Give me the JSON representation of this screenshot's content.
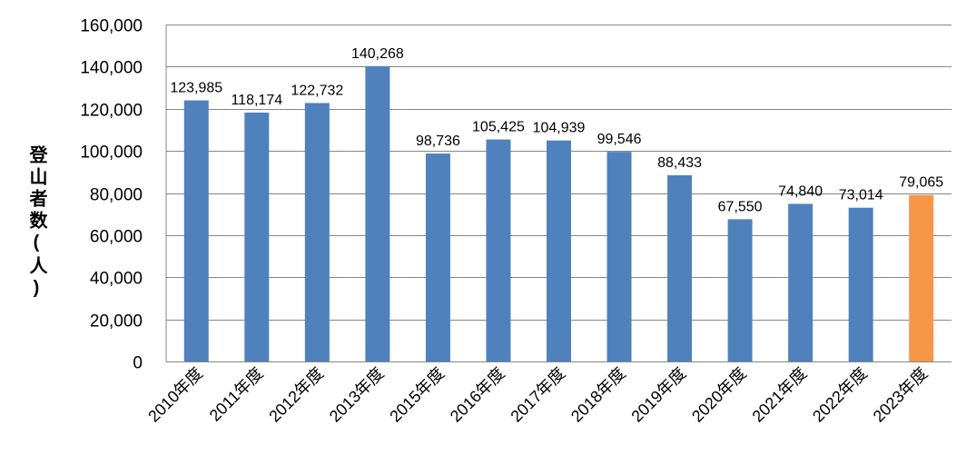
{
  "chart_data": {
    "type": "bar",
    "categories": [
      "2010年度",
      "2011年度",
      "2012年度",
      "2013年度",
      "2015年度",
      "2016年度",
      "2017年度",
      "2018年度",
      "2019年度",
      "2020年度",
      "2021年度",
      "2022年度",
      "2023年度"
    ],
    "values": [
      123985,
      118174,
      122732,
      140268,
      98736,
      105425,
      104939,
      99546,
      88433,
      67550,
      74840,
      73014,
      79065
    ],
    "value_labels": [
      "123,985",
      "118,174",
      "122,732",
      "140,268",
      "98,736",
      "105,425",
      "104,939",
      "99,546",
      "88,433",
      "67,550",
      "74,840",
      "73,014",
      "79,065"
    ],
    "ylabel": "登山者数(人)",
    "ylim": [
      0,
      160000
    ],
    "yticks": [
      0,
      20000,
      40000,
      60000,
      80000,
      100000,
      120000,
      140000,
      160000
    ],
    "ytick_labels": [
      "0",
      "20,000",
      "40,000",
      "60,000",
      "80,000",
      "100,000",
      "120,000",
      "140,000",
      "160,000"
    ],
    "grid": true,
    "legend": "none",
    "colors": {
      "bar": "#4f81bd",
      "highlight": "#f79646",
      "grid": "#868686"
    },
    "highlight_index": 12
  }
}
